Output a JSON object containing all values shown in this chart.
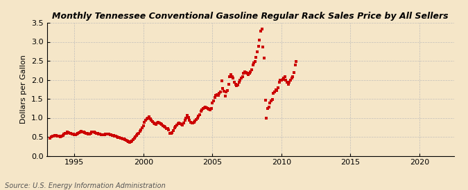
{
  "title": "Monthly Tennessee Conventional Gasoline Regular Rack Sales Price by All Sellers",
  "ylabel": "Dollars per Gallon",
  "source": "Source: U.S. Energy Information Administration",
  "bg_color": "#f5e6c8",
  "marker_color": "#cc0000",
  "grid_color": "#bbbbbb",
  "xlim": [
    1993.0,
    2022.5
  ],
  "ylim": [
    0.0,
    3.5
  ],
  "xticks": [
    1995,
    2000,
    2005,
    2010,
    2015,
    2020
  ],
  "yticks": [
    0.0,
    0.5,
    1.0,
    1.5,
    2.0,
    2.5,
    3.0,
    3.5
  ],
  "data": [
    [
      1993.25,
      0.47
    ],
    [
      1993.33,
      0.5
    ],
    [
      1993.42,
      0.52
    ],
    [
      1993.5,
      0.52
    ],
    [
      1993.58,
      0.53
    ],
    [
      1993.67,
      0.53
    ],
    [
      1993.75,
      0.52
    ],
    [
      1993.83,
      0.52
    ],
    [
      1993.92,
      0.51
    ],
    [
      1994.0,
      0.5
    ],
    [
      1994.08,
      0.51
    ],
    [
      1994.17,
      0.54
    ],
    [
      1994.25,
      0.57
    ],
    [
      1994.33,
      0.59
    ],
    [
      1994.42,
      0.6
    ],
    [
      1994.5,
      0.62
    ],
    [
      1994.58,
      0.61
    ],
    [
      1994.67,
      0.6
    ],
    [
      1994.75,
      0.59
    ],
    [
      1994.83,
      0.58
    ],
    [
      1994.92,
      0.57
    ],
    [
      1995.0,
      0.55
    ],
    [
      1995.08,
      0.56
    ],
    [
      1995.17,
      0.58
    ],
    [
      1995.25,
      0.6
    ],
    [
      1995.33,
      0.61
    ],
    [
      1995.42,
      0.63
    ],
    [
      1995.5,
      0.64
    ],
    [
      1995.58,
      0.63
    ],
    [
      1995.67,
      0.62
    ],
    [
      1995.75,
      0.61
    ],
    [
      1995.83,
      0.6
    ],
    [
      1995.92,
      0.59
    ],
    [
      1996.0,
      0.57
    ],
    [
      1996.08,
      0.58
    ],
    [
      1996.17,
      0.6
    ],
    [
      1996.25,
      0.62
    ],
    [
      1996.33,
      0.63
    ],
    [
      1996.42,
      0.62
    ],
    [
      1996.5,
      0.61
    ],
    [
      1996.58,
      0.6
    ],
    [
      1996.67,
      0.59
    ],
    [
      1996.75,
      0.58
    ],
    [
      1996.83,
      0.57
    ],
    [
      1996.92,
      0.56
    ],
    [
      1997.0,
      0.55
    ],
    [
      1997.08,
      0.55
    ],
    [
      1997.17,
      0.56
    ],
    [
      1997.25,
      0.57
    ],
    [
      1997.33,
      0.58
    ],
    [
      1997.42,
      0.58
    ],
    [
      1997.5,
      0.57
    ],
    [
      1997.58,
      0.56
    ],
    [
      1997.67,
      0.55
    ],
    [
      1997.75,
      0.54
    ],
    [
      1997.83,
      0.53
    ],
    [
      1997.92,
      0.52
    ],
    [
      1998.0,
      0.51
    ],
    [
      1998.08,
      0.5
    ],
    [
      1998.17,
      0.49
    ],
    [
      1998.25,
      0.48
    ],
    [
      1998.33,
      0.47
    ],
    [
      1998.42,
      0.46
    ],
    [
      1998.5,
      0.45
    ],
    [
      1998.58,
      0.44
    ],
    [
      1998.67,
      0.43
    ],
    [
      1998.75,
      0.41
    ],
    [
      1998.83,
      0.39
    ],
    [
      1998.92,
      0.37
    ],
    [
      1999.0,
      0.36
    ],
    [
      1999.08,
      0.37
    ],
    [
      1999.17,
      0.39
    ],
    [
      1999.25,
      0.42
    ],
    [
      1999.33,
      0.46
    ],
    [
      1999.42,
      0.5
    ],
    [
      1999.5,
      0.53
    ],
    [
      1999.58,
      0.57
    ],
    [
      1999.67,
      0.6
    ],
    [
      1999.75,
      0.64
    ],
    [
      1999.83,
      0.68
    ],
    [
      1999.92,
      0.73
    ],
    [
      2000.0,
      0.8
    ],
    [
      2000.08,
      0.88
    ],
    [
      2000.17,
      0.94
    ],
    [
      2000.25,
      0.97
    ],
    [
      2000.33,
      1.0
    ],
    [
      2000.42,
      1.02
    ],
    [
      2000.5,
      0.98
    ],
    [
      2000.58,
      0.93
    ],
    [
      2000.67,
      0.9
    ],
    [
      2000.75,
      0.87
    ],
    [
      2000.83,
      0.84
    ],
    [
      2000.92,
      0.82
    ],
    [
      2001.0,
      0.87
    ],
    [
      2001.08,
      0.88
    ],
    [
      2001.17,
      0.86
    ],
    [
      2001.25,
      0.84
    ],
    [
      2001.33,
      0.82
    ],
    [
      2001.42,
      0.8
    ],
    [
      2001.5,
      0.77
    ],
    [
      2001.58,
      0.75
    ],
    [
      2001.67,
      0.72
    ],
    [
      2001.75,
      0.71
    ],
    [
      2001.83,
      0.68
    ],
    [
      2001.92,
      0.6
    ],
    [
      2002.0,
      0.59
    ],
    [
      2002.08,
      0.61
    ],
    [
      2002.17,
      0.67
    ],
    [
      2002.25,
      0.73
    ],
    [
      2002.33,
      0.77
    ],
    [
      2002.42,
      0.81
    ],
    [
      2002.5,
      0.84
    ],
    [
      2002.58,
      0.86
    ],
    [
      2002.67,
      0.85
    ],
    [
      2002.75,
      0.83
    ],
    [
      2002.83,
      0.81
    ],
    [
      2002.92,
      0.87
    ],
    [
      2003.0,
      0.94
    ],
    [
      2003.08,
      0.99
    ],
    [
      2003.17,
      1.06
    ],
    [
      2003.25,
      1.01
    ],
    [
      2003.33,
      0.94
    ],
    [
      2003.42,
      0.89
    ],
    [
      2003.5,
      0.86
    ],
    [
      2003.58,
      0.87
    ],
    [
      2003.67,
      0.89
    ],
    [
      2003.75,
      0.92
    ],
    [
      2003.83,
      0.95
    ],
    [
      2003.92,
      0.99
    ],
    [
      2004.0,
      1.04
    ],
    [
      2004.08,
      1.09
    ],
    [
      2004.17,
      1.17
    ],
    [
      2004.25,
      1.21
    ],
    [
      2004.33,
      1.24
    ],
    [
      2004.42,
      1.27
    ],
    [
      2004.5,
      1.29
    ],
    [
      2004.58,
      1.27
    ],
    [
      2004.67,
      1.25
    ],
    [
      2004.75,
      1.22
    ],
    [
      2004.83,
      1.21
    ],
    [
      2004.92,
      1.24
    ],
    [
      2005.0,
      1.39
    ],
    [
      2005.08,
      1.44
    ],
    [
      2005.17,
      1.54
    ],
    [
      2005.25,
      1.59
    ],
    [
      2005.33,
      1.61
    ],
    [
      2005.42,
      1.59
    ],
    [
      2005.5,
      1.64
    ],
    [
      2005.58,
      1.69
    ],
    [
      2005.67,
      1.98
    ],
    [
      2005.75,
      1.78
    ],
    [
      2005.83,
      1.7
    ],
    [
      2005.92,
      1.58
    ],
    [
      2006.0,
      1.68
    ],
    [
      2006.08,
      1.71
    ],
    [
      2006.17,
      1.89
    ],
    [
      2006.25,
      2.09
    ],
    [
      2006.33,
      2.14
    ],
    [
      2006.42,
      2.09
    ],
    [
      2006.5,
      2.04
    ],
    [
      2006.58,
      1.94
    ],
    [
      2006.67,
      1.89
    ],
    [
      2006.75,
      1.84
    ],
    [
      2006.83,
      1.87
    ],
    [
      2006.92,
      1.93
    ],
    [
      2007.0,
      1.99
    ],
    [
      2007.08,
      2.04
    ],
    [
      2007.17,
      2.09
    ],
    [
      2007.25,
      2.17
    ],
    [
      2007.33,
      2.21
    ],
    [
      2007.42,
      2.19
    ],
    [
      2007.5,
      2.17
    ],
    [
      2007.58,
      2.14
    ],
    [
      2007.67,
      2.17
    ],
    [
      2007.75,
      2.21
    ],
    [
      2007.83,
      2.27
    ],
    [
      2007.92,
      2.39
    ],
    [
      2008.0,
      2.44
    ],
    [
      2008.08,
      2.49
    ],
    [
      2008.17,
      2.59
    ],
    [
      2008.25,
      2.74
    ],
    [
      2008.33,
      2.89
    ],
    [
      2008.42,
      3.04
    ],
    [
      2008.5,
      3.29
    ],
    [
      2008.58,
      3.33
    ],
    [
      2008.67,
      2.86
    ],
    [
      2008.75,
      2.58
    ],
    [
      2008.83,
      1.46
    ],
    [
      2008.92,
      0.99
    ],
    [
      2009.0,
      1.24
    ],
    [
      2009.08,
      1.29
    ],
    [
      2009.17,
      1.39
    ],
    [
      2009.25,
      1.44
    ],
    [
      2009.33,
      1.49
    ],
    [
      2009.42,
      1.64
    ],
    [
      2009.5,
      1.69
    ],
    [
      2009.58,
      1.74
    ],
    [
      2009.67,
      1.71
    ],
    [
      2009.75,
      1.79
    ],
    [
      2009.83,
      1.94
    ],
    [
      2009.92,
      1.99
    ],
    [
      2010.0,
      1.99
    ],
    [
      2010.08,
      2.01
    ],
    [
      2010.17,
      2.04
    ],
    [
      2010.25,
      2.09
    ],
    [
      2010.33,
      1.99
    ],
    [
      2010.42,
      1.94
    ],
    [
      2010.5,
      1.89
    ],
    [
      2010.58,
      1.94
    ],
    [
      2010.67,
      1.99
    ],
    [
      2010.75,
      2.04
    ],
    [
      2010.83,
      2.09
    ],
    [
      2010.92,
      2.19
    ],
    [
      2011.0,
      2.39
    ],
    [
      2011.08,
      2.49
    ]
  ]
}
